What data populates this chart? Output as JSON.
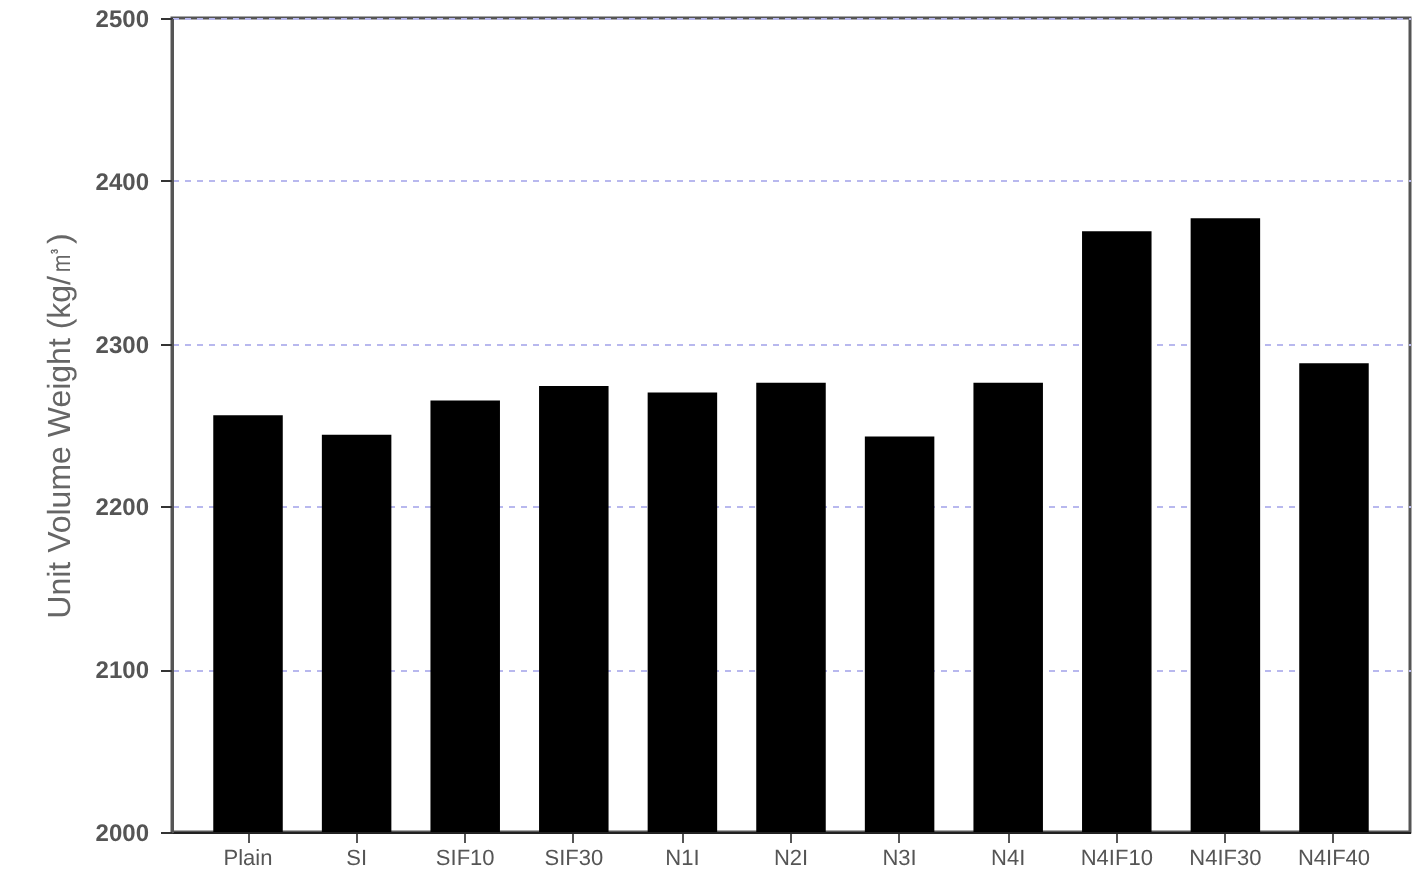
{
  "chart_data": {
    "type": "bar",
    "ylabel": "Unit Volume Weight (kg/㎥)",
    "categories": [
      "Plain",
      "SI",
      "SIF10",
      "SIF30",
      "N1I",
      "N2I",
      "N3I",
      "N4I",
      "N4IF10",
      "N4IF30",
      "N4IF40"
    ],
    "values": [
      2256,
      2244,
      2265,
      2274,
      2270,
      2276,
      2243,
      2276,
      2369,
      2377,
      2288
    ],
    "color": "#000000",
    "ylim": [
      2000,
      2500
    ],
    "yticks": [
      2000,
      2100,
      2200,
      2300,
      2400,
      2500
    ],
    "grid": "y"
  }
}
